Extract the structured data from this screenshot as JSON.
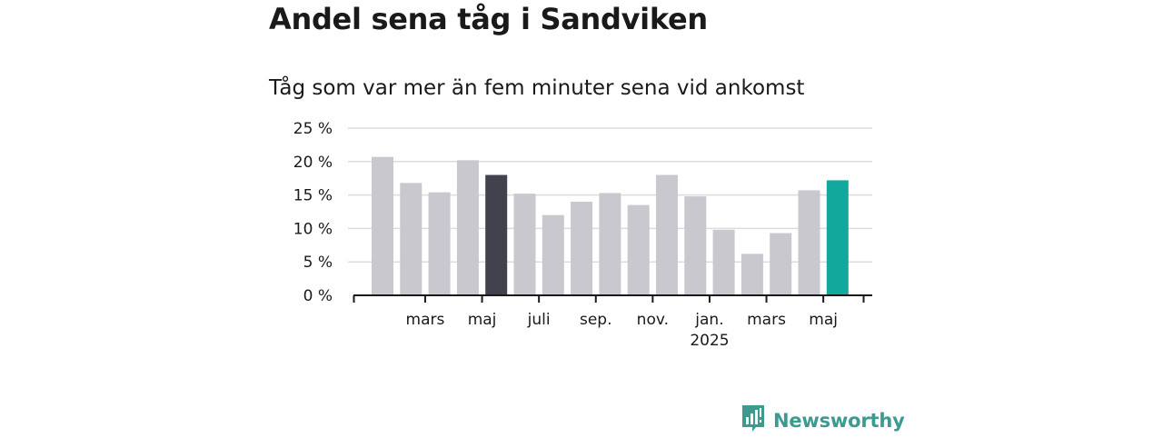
{
  "title": "Andel sena tåg i Sandviken",
  "subtitle": "Tåg som var mer än fem minuter sena vid ankomst",
  "brand": {
    "name": "Newsworthy",
    "icon": "newsworthy-logo-icon",
    "color": "#3c9a8f"
  },
  "chart_data": {
    "type": "bar",
    "title": "Andel sena tåg i Sandviken",
    "subtitle": "Tåg som var mer än fem minuter sena vid ankomst",
    "xlabel": "",
    "ylabel": "",
    "ylim": [
      0,
      25
    ],
    "yticks": [
      0,
      5,
      10,
      15,
      20,
      25
    ],
    "ytick_labels": [
      "0 %",
      "5 %",
      "10 %",
      "15 %",
      "20 %",
      "25 %"
    ],
    "grid": true,
    "values": [
      20.7,
      16.8,
      15.4,
      20.2,
      18.0,
      15.2,
      12.0,
      14.0,
      15.3,
      13.5,
      18.0,
      14.8,
      9.8,
      6.2,
      9.3,
      15.7,
      17.2
    ],
    "bar_colors": [
      "#c8c8ce",
      "#c8c8ce",
      "#c8c8ce",
      "#c8c8ce",
      "#42424f",
      "#c8c8ce",
      "#c8c8ce",
      "#c8c8ce",
      "#c8c8ce",
      "#c8c8ce",
      "#c8c8ce",
      "#c8c8ce",
      "#c8c8ce",
      "#c8c8ce",
      "#c8c8ce",
      "#c8c8ce",
      "#12a89b"
    ],
    "xtick_labels": [
      {
        "after_bar": 1,
        "label": "mars"
      },
      {
        "after_bar": 3,
        "label": "maj"
      },
      {
        "after_bar": 5,
        "label": "juli"
      },
      {
        "after_bar": 7,
        "label": "sep."
      },
      {
        "after_bar": 9,
        "label": "nov."
      },
      {
        "after_bar": 11,
        "label": "jan.",
        "sublabel": "2025"
      },
      {
        "after_bar": 13,
        "label": "mars"
      },
      {
        "after_bar": 15,
        "label": "maj"
      }
    ],
    "colors": {
      "default": "#c8c8ce",
      "highlight_dark": "#42424f",
      "highlight_latest": "#12a89b",
      "grid": "#dcdcdc",
      "axis": "#1a1a1a"
    }
  }
}
